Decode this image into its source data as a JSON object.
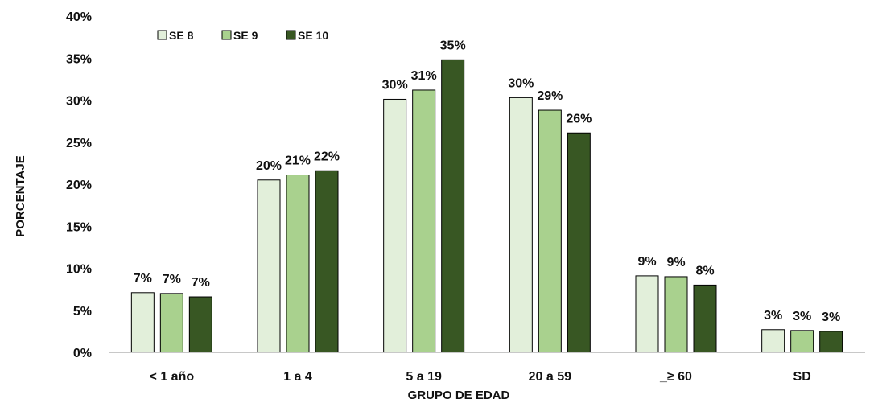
{
  "chart_data": {
    "type": "bar",
    "title": "",
    "xlabel": "GRUPO DE EDAD",
    "ylabel": "PORCENTAJE",
    "ylim": [
      0,
      40
    ],
    "yticks": [
      "0%",
      "5%",
      "10%",
      "15%",
      "20%",
      "25%",
      "30%",
      "35%",
      "40%"
    ],
    "grid": false,
    "legend_position": "top-left",
    "categories": [
      "< 1 año",
      "1 a 4",
      "5 a 19",
      "20 a 59",
      "_≥ 60",
      "SD"
    ],
    "series": [
      {
        "name": "SE 8",
        "color": "#e2efda",
        "values": [
          7.1,
          20.5,
          30.1,
          30.3,
          9.1,
          2.7
        ],
        "labels": [
          "7%",
          "20%",
          "30%",
          "30%",
          "9%",
          "3%"
        ]
      },
      {
        "name": "SE 9",
        "color": "#a9d18e",
        "values": [
          7.0,
          21.1,
          31.2,
          28.8,
          9.0,
          2.6
        ],
        "labels": [
          "7%",
          "21%",
          "31%",
          "29%",
          "9%",
          "3%"
        ]
      },
      {
        "name": "SE 10",
        "color": "#385723",
        "values": [
          6.6,
          21.6,
          34.8,
          26.1,
          8.0,
          2.5
        ],
        "labels": [
          "7%",
          "22%",
          "35%",
          "26%",
          "8%",
          "3%"
        ]
      }
    ]
  }
}
